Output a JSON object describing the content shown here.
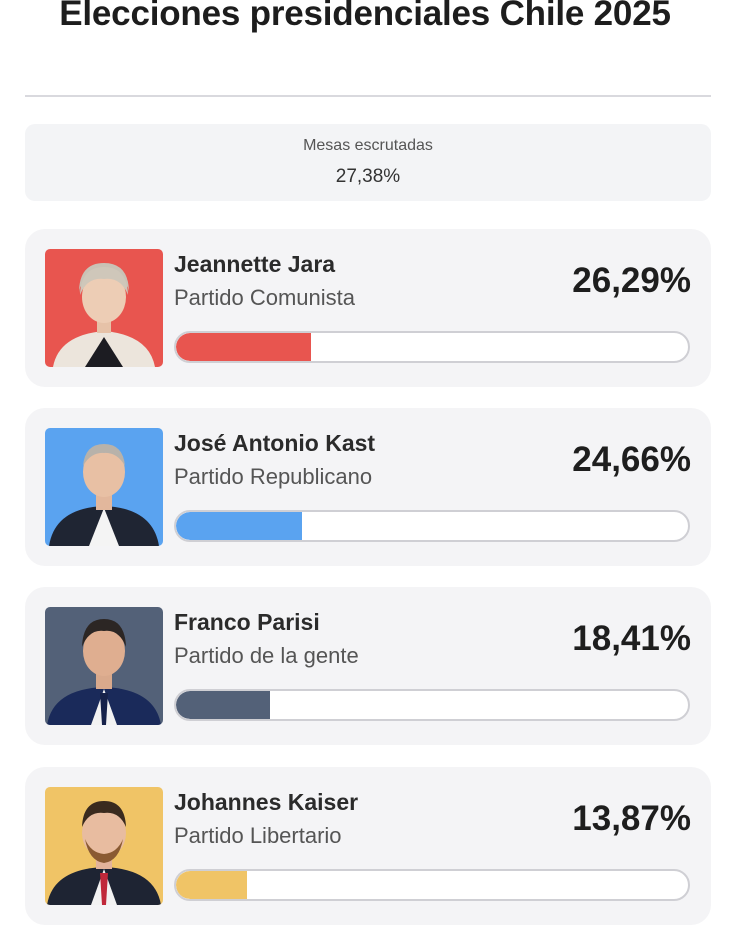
{
  "title": "Elecciones presidenciales Chile 2025",
  "counted": {
    "label": "Mesas escrutadas",
    "value": "27,38%"
  },
  "candidates": [
    {
      "name": "Jeannette Jara",
      "party": "Partido Comunista",
      "percent_label": "26,29%",
      "percent": 26.29,
      "color": "#e8554f",
      "photo_bg": "#e8554f",
      "photo_icon": "portrait-icon"
    },
    {
      "name": "José Antonio Kast",
      "party": "Partido Republicano",
      "percent_label": "24,66%",
      "percent": 24.66,
      "color": "#5aa3f0",
      "photo_bg": "#5aa3f0",
      "photo_icon": "portrait-icon"
    },
    {
      "name": "Franco Parisi",
      "party": "Partido de la gente",
      "percent_label": "18,41%",
      "percent": 18.41,
      "color": "#536178",
      "photo_bg": "#536178",
      "photo_icon": "portrait-icon"
    },
    {
      "name": "Johannes Kaiser",
      "party": "Partido Libertario",
      "percent_label": "13,87%",
      "percent": 13.87,
      "color": "#f0c466",
      "photo_bg": "#f0c466",
      "photo_icon": "portrait-icon"
    }
  ]
}
